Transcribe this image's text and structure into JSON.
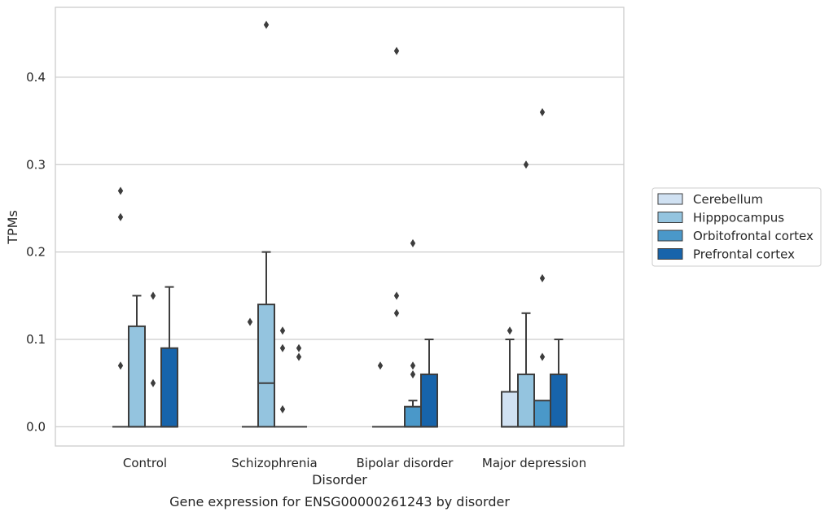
{
  "chart_data": {
    "type": "box",
    "title": "",
    "caption": "Gene expression for ENSG00000261243 by disorder",
    "xlabel": "Disorder",
    "ylabel": "TPMs",
    "ylim": [
      -0.022,
      0.48
    ],
    "yticks": [
      0.0,
      0.1,
      0.2,
      0.3,
      0.4
    ],
    "ytick_labels": [
      "0.0",
      "0.1",
      "0.2",
      "0.3",
      "0.4"
    ],
    "grid": "horizontal",
    "legend_position": "right",
    "categories": [
      "Control",
      "Schizophrenia",
      "Bipolar disorder",
      "Major depression"
    ],
    "series": [
      {
        "name": "Cerebellum",
        "color": "#d0e1f2",
        "boxes": [
          {
            "q1": 0,
            "median": 0,
            "q3": 0,
            "whisker_low": 0,
            "whisker_high": 0,
            "outliers": [
              0.07,
              0.24,
              0.27
            ]
          },
          {
            "q1": 0,
            "median": 0,
            "q3": 0,
            "whisker_low": 0,
            "whisker_high": 0,
            "outliers": [
              0.12
            ]
          },
          {
            "q1": 0,
            "median": 0,
            "q3": 0,
            "whisker_low": 0,
            "whisker_high": 0,
            "outliers": [
              0.07
            ]
          },
          {
            "q1": 0,
            "median": 0,
            "q3": 0.04,
            "whisker_low": 0,
            "whisker_high": 0.1,
            "outliers": [
              0.11
            ]
          }
        ]
      },
      {
        "name": "Hipppocampus",
        "color": "#94c4df",
        "boxes": [
          {
            "q1": 0,
            "median": 0,
            "q3": 0.115,
            "whisker_low": 0,
            "whisker_high": 0.15,
            "outliers": []
          },
          {
            "q1": 0,
            "median": 0.05,
            "q3": 0.14,
            "whisker_low": 0,
            "whisker_high": 0.2,
            "outliers": [
              0.46
            ]
          },
          {
            "q1": 0,
            "median": 0,
            "q3": 0,
            "whisker_low": 0,
            "whisker_high": 0,
            "outliers": [
              0.13,
              0.15,
              0.43
            ]
          },
          {
            "q1": 0,
            "median": 0,
            "q3": 0.06,
            "whisker_low": 0,
            "whisker_high": 0.13,
            "outliers": [
              0.3
            ]
          }
        ]
      },
      {
        "name": "Orbitofrontal cortex",
        "color": "#4a98c9",
        "boxes": [
          {
            "q1": 0,
            "median": 0,
            "q3": 0,
            "whisker_low": 0,
            "whisker_high": 0,
            "outliers": [
              0.05,
              0.15
            ]
          },
          {
            "q1": 0,
            "median": 0,
            "q3": 0,
            "whisker_low": 0,
            "whisker_high": 0,
            "outliers": [
              0.02,
              0.09,
              0.11
            ]
          },
          {
            "q1": 0,
            "median": 0,
            "q3": 0.023,
            "whisker_low": 0,
            "whisker_high": 0.03,
            "outliers": [
              0.06,
              0.07,
              0.21
            ]
          },
          {
            "q1": 0,
            "median": 0,
            "q3": 0.03,
            "whisker_low": 0,
            "whisker_high": 0.03,
            "outliers": [
              0.08,
              0.17,
              0.36
            ]
          }
        ]
      },
      {
        "name": "Prefrontal cortex",
        "color": "#1764ab",
        "boxes": [
          {
            "q1": 0,
            "median": 0,
            "q3": 0.09,
            "whisker_low": 0,
            "whisker_high": 0.16,
            "outliers": []
          },
          {
            "q1": 0,
            "median": 0,
            "q3": 0,
            "whisker_low": 0,
            "whisker_high": 0,
            "outliers": [
              0.08,
              0.09
            ]
          },
          {
            "q1": 0,
            "median": 0,
            "q3": 0.06,
            "whisker_low": 0,
            "whisker_high": 0.1,
            "outliers": []
          },
          {
            "q1": 0,
            "median": 0,
            "q3": 0.06,
            "whisker_low": 0,
            "whisker_high": 0.1,
            "outliers": []
          }
        ]
      }
    ]
  }
}
